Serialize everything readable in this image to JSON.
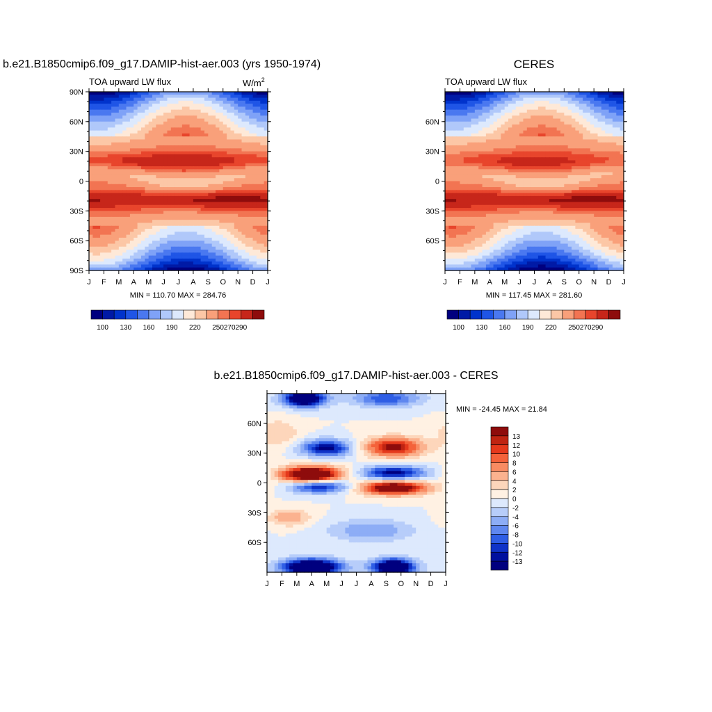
{
  "chart_data": [
    {
      "type": "heatmap",
      "title": "b.e21.B1850cmip6.f09_g17.DAMIP-hist-aer.003 (yrs 1950-1974)",
      "subtitle": "TOA upward LW flux",
      "units_label": "W/m",
      "units_sup": "2",
      "x_ticks": [
        "J",
        "F",
        "M",
        "A",
        "M",
        "J",
        "J",
        "A",
        "S",
        "O",
        "N",
        "D",
        "J"
      ],
      "y_ticks": [
        "90N",
        "60N",
        "30N",
        "0",
        "30S",
        "60S",
        "90S"
      ],
      "y_tick_values": [
        90,
        60,
        30,
        0,
        -30,
        -60,
        -90
      ],
      "ylim": [
        -90,
        90
      ],
      "stats": "MIN = 110.70  MAX = 284.76",
      "min": 110.7,
      "max": 284.76,
      "colorbar_labels": [
        "100",
        "130",
        "160",
        "190",
        "220",
        "250",
        "270",
        "290"
      ],
      "field": "mean"
    },
    {
      "type": "heatmap",
      "title": "CERES",
      "subtitle": "TOA upward LW flux",
      "x_ticks": [
        "J",
        "F",
        "M",
        "A",
        "M",
        "J",
        "J",
        "A",
        "S",
        "O",
        "N",
        "D",
        "J"
      ],
      "y_ticks": [
        "60N",
        "30N",
        "0",
        "30S",
        "60S"
      ],
      "y_tick_values": [
        60,
        30,
        0,
        -30,
        -60
      ],
      "ylim": [
        -90,
        90
      ],
      "stats": "MIN = 117.45  MAX = 281.60",
      "min": 117.45,
      "max": 281.6,
      "colorbar_labels": [
        "100",
        "130",
        "160",
        "190",
        "220",
        "250",
        "270",
        "290"
      ],
      "field": "mean"
    },
    {
      "type": "heatmap",
      "title": "b.e21.B1850cmip6.f09_g17.DAMIP-hist-aer.003 - CERES",
      "x_ticks": [
        "J",
        "F",
        "M",
        "A",
        "M",
        "J",
        "J",
        "A",
        "S",
        "O",
        "N",
        "D",
        "J"
      ],
      "y_ticks": [
        "60N",
        "30N",
        "0",
        "30S",
        "60S"
      ],
      "y_tick_values": [
        60,
        30,
        0,
        -30,
        -60
      ],
      "ylim": [
        -90,
        90
      ],
      "stats": "MIN = -24.45  MAX =  21.84",
      "min": -24.45,
      "max": 21.84,
      "colorbar_labels": [
        "13",
        "12",
        "10",
        "8",
        "6",
        "4",
        "2",
        "0",
        "-2",
        "-4",
        "-6",
        "-8",
        "-10",
        "-12",
        "-13"
      ],
      "field": "diff"
    }
  ],
  "palette": [
    "#00007f",
    "#001aa6",
    "#0033cc",
    "#1f55e6",
    "#4a78f0",
    "#7fa2f7",
    "#b0c8fa",
    "#dde9fd",
    "#fee9d8",
    "#fcc7a6",
    "#f9a07a",
    "#f27452",
    "#e8452c",
    "#c7261a",
    "#8e0c0c"
  ],
  "diff_palette": [
    "#8e0c0c",
    "#bf2412",
    "#e5391c",
    "#f4623a",
    "#f88b62",
    "#fbb28f",
    "#fdd6bb",
    "#fff1e3",
    "#dde9fd",
    "#b7cdfa",
    "#8dadf6",
    "#5f87ef",
    "#2f5ee5",
    "#0f33c8",
    "#00109e",
    "#00007f"
  ]
}
